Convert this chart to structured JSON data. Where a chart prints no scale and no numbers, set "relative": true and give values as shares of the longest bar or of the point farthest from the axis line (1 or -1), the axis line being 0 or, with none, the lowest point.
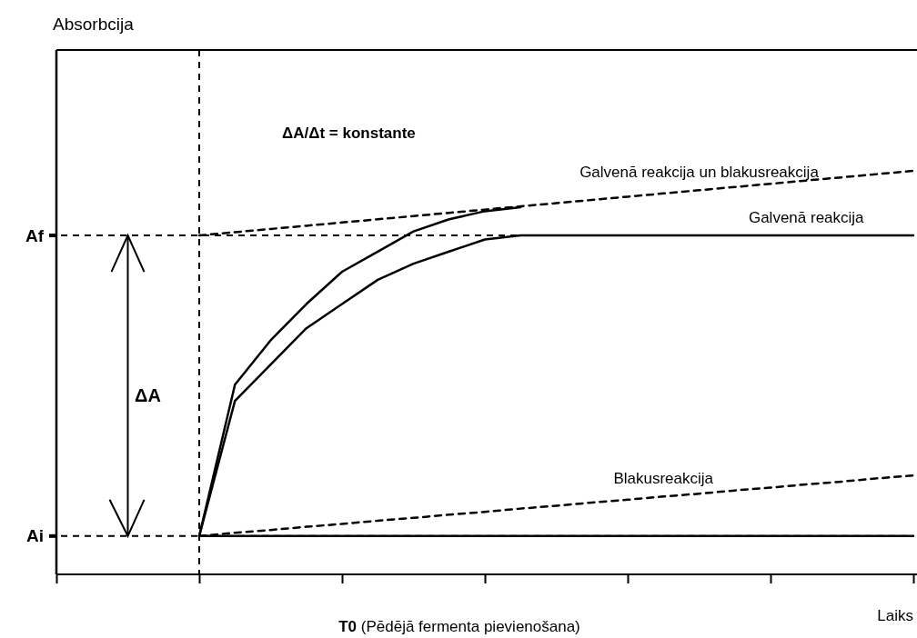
{
  "chart_data": {
    "type": "line",
    "relative": true,
    "xlabel": "Laiks",
    "categories": [
      null,
      null,
      null,
      null,
      null,
      null,
      null,
      null,
      null,
      null,
      null,
      null,
      null,
      null,
      null,
      null,
      null,
      null,
      null,
      null,
      null,
      null,
      null,
      null,
      null
    ],
    "marker": "none",
    "series": [
      {
        "name": "Galvenā reakcija un blakusreakcija",
        "color": "#000000",
        "line_style": "dashed",
        "values": [
          null,
          null,
          null,
          null,
          0.84,
          0.848,
          0.856,
          0.864,
          0.872,
          0.88,
          0.888,
          0.896,
          0.904,
          0.912,
          0.92,
          0.928,
          0.936,
          0.944,
          0.952,
          0.96,
          0.968,
          0.976,
          0.984,
          0.992,
          1.0
        ]
      },
      {
        "color": "#000000",
        "line_style": "solid",
        "values": [
          null,
          null,
          null,
          null,
          0.095,
          0.47,
          0.58,
          0.67,
          0.75,
          0.8,
          0.85,
          0.88,
          0.9,
          0.91,
          null,
          null,
          null,
          null,
          null,
          null,
          null,
          null,
          null,
          null,
          null
        ]
      },
      {
        "name": "Galvenā reakcija",
        "color": "#000000",
        "line_style": "solid",
        "values": [
          null,
          null,
          null,
          null,
          0.095,
          0.43,
          0.52,
          0.61,
          0.67,
          0.73,
          0.77,
          0.8,
          0.83,
          0.84,
          0.84,
          0.84,
          0.84,
          0.84,
          0.84,
          0.84,
          0.84,
          0.84,
          0.84,
          0.84,
          0.84
        ]
      },
      {
        "name": "Blakusreakcija",
        "color": "#000000",
        "line_style": "dashed",
        "values": [
          null,
          null,
          null,
          null,
          0.095,
          0.103,
          0.11,
          0.118,
          0.125,
          0.133,
          0.14,
          0.148,
          0.155,
          0.163,
          0.17,
          0.178,
          0.185,
          0.193,
          0.2,
          0.208,
          0.215,
          0.223,
          0.23,
          0.238,
          0.245
        ]
      },
      {
        "color": "#000000",
        "line_style": "solid",
        "values": [
          null,
          null,
          null,
          null,
          0.095,
          0.095,
          0.095,
          0.095,
          0.095,
          0.095,
          0.095,
          0.095,
          0.095,
          0.095,
          0.095,
          0.095,
          0.095,
          0.095,
          0.095,
          0.095,
          0.095,
          0.095,
          0.095,
          0.095,
          0.095
        ]
      }
    ],
    "ref_lines": [
      {
        "axis": "y",
        "value": 0.84,
        "label": "Af",
        "line_style": "dashed"
      },
      {
        "axis": "y",
        "value": 0.095,
        "label": "Ai",
        "line_style": "dashed"
      }
    ],
    "annotations": [
      "ΔA/Δt = konstante",
      "ΔA",
      "T0 (Pēdējā fermenta pievienošana)",
      "Absorbcija"
    ]
  }
}
